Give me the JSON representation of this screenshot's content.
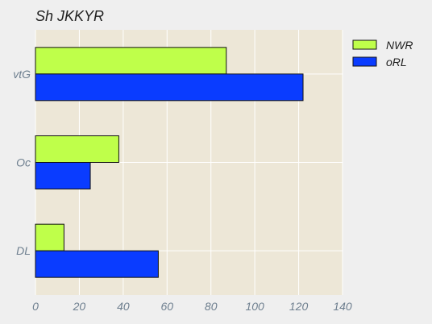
{
  "chart_data": {
    "type": "bar",
    "orientation": "horizontal",
    "title": "Sh JKKYR",
    "xlabel": "",
    "ylabel": "",
    "categories": [
      "DL",
      "Oc",
      "vtG"
    ],
    "series": [
      {
        "name": "NWR",
        "values": [
          13,
          38,
          87
        ],
        "color": "#bfff4a"
      },
      {
        "name": "oRL",
        "values": [
          56,
          25,
          122
        ],
        "color": "#0a3cff"
      }
    ],
    "xlim": [
      0,
      140
    ],
    "xticks": [
      0,
      20,
      40,
      60,
      80,
      100,
      120,
      140
    ],
    "grid": true,
    "legend_position": "top-right"
  },
  "colors": {
    "page_background": "#efefef",
    "plot_background": "#ede7d7",
    "grid": "#ffffff",
    "tick_label": "#6e7f8f",
    "bar_edge": "#111111"
  }
}
